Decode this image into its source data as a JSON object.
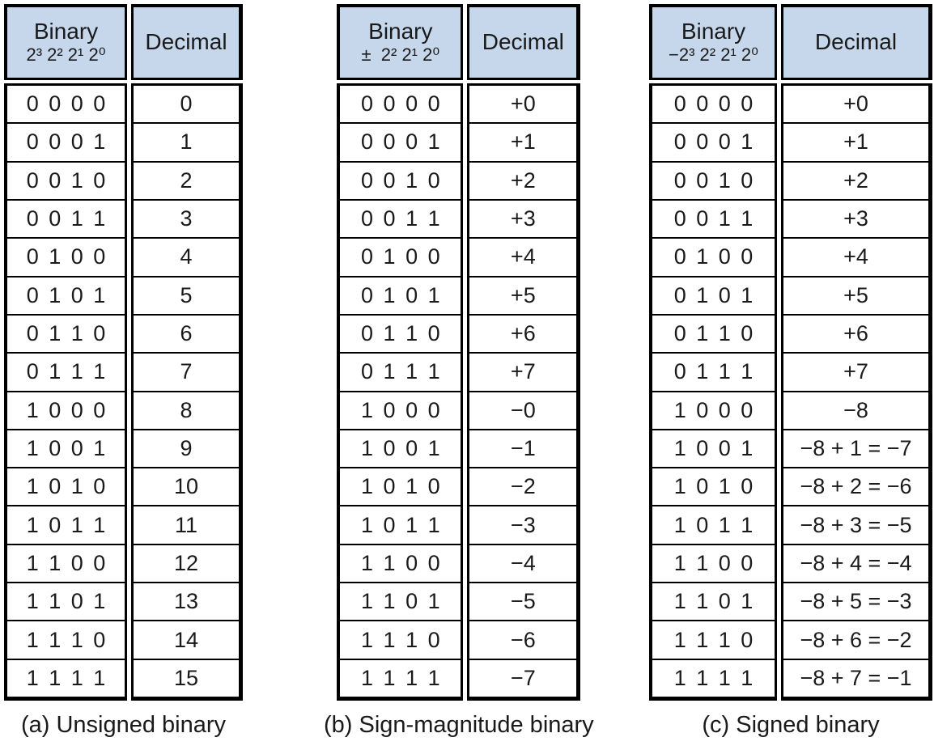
{
  "figure": {
    "description_colors": {
      "header_bg": "#c6d7ec",
      "border": "#000000",
      "text": "#1a1a1a",
      "background": "#ffffff"
    },
    "tables": [
      {
        "caption": "(a) Unsigned binary",
        "header": {
          "binary_title": "Binary",
          "binary_weights": "2³ 2² 2¹ 2⁰",
          "decimal_title": "Decimal"
        },
        "binary_rows": [
          "0 0 0 0",
          "0 0 0 1",
          "0 0 1 0",
          "0 0 1 1",
          "0 1 0 0",
          "0 1 0 1",
          "0 1 1 0",
          "0 1 1 1",
          "1 0 0 0",
          "1 0 0 1",
          "1 0 1 0",
          "1 0 1 1",
          "1 1 0 0",
          "1 1 0 1",
          "1 1 1 0",
          "1 1 1 1"
        ],
        "decimal_rows": [
          "0",
          "1",
          "2",
          "3",
          "4",
          "5",
          "6",
          "7",
          "8",
          "9",
          "10",
          "11",
          "12",
          "13",
          "14",
          "15"
        ]
      },
      {
        "caption": "(b) Sign-magnitude binary",
        "header": {
          "binary_title": "Binary",
          "binary_weights": "±  2² 2¹ 2⁰",
          "decimal_title": "Decimal"
        },
        "binary_rows": [
          "0 0 0 0",
          "0 0 0 1",
          "0 0 1 0",
          "0 0 1 1",
          "0 1 0 0",
          "0 1 0 1",
          "0 1 1 0",
          "0 1 1 1",
          "1 0 0 0",
          "1 0 0 1",
          "1 0 1 0",
          "1 0 1 1",
          "1 1 0 0",
          "1 1 0 1",
          "1 1 1 0",
          "1 1 1 1"
        ],
        "decimal_rows": [
          "+0",
          "+1",
          "+2",
          "+3",
          "+4",
          "+5",
          "+6",
          "+7",
          "−0",
          "−1",
          "−2",
          "−3",
          "−4",
          "−5",
          "−6",
          "−7"
        ]
      },
      {
        "caption": "(c) Signed binary",
        "header": {
          "binary_title": "Binary",
          "binary_weights": "−2³ 2² 2¹ 2⁰",
          "decimal_title": "Decimal"
        },
        "binary_rows": [
          "0 0 0 0",
          "0 0 0 1",
          "0 0 1 0",
          "0 0 1 1",
          "0 1 0 0",
          "0 1 0 1",
          "0 1 1 0",
          "0 1 1 1",
          "1 0 0 0",
          "1 0 0 1",
          "1 0 1 0",
          "1 0 1 1",
          "1 1 0 0",
          "1 1 0 1",
          "1 1 1 0",
          "1 1 1 1"
        ],
        "decimal_rows": [
          "+0",
          "+1",
          "+2",
          "+3",
          "+4",
          "+5",
          "+6",
          "+7",
          "−8",
          "−8 + 1 = −7",
          "−8 + 2 = −6",
          "−8 + 3 = −5",
          "−8 + 4 = −4",
          "−8 + 5 = −3",
          "−8 + 6 = −2",
          "−8 + 7 = −1"
        ]
      }
    ]
  }
}
